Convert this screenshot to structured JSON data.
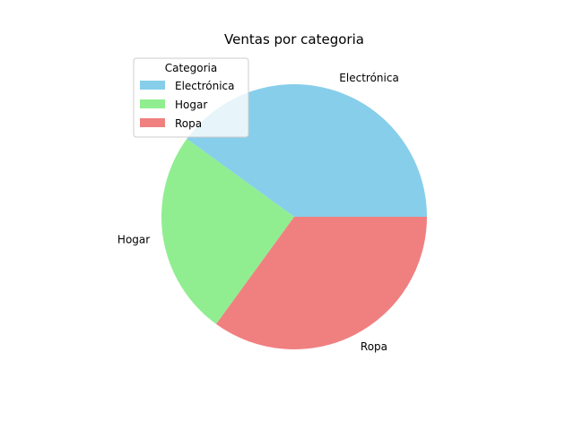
{
  "chart_data": {
    "type": "pie",
    "title": "Ventas por categoria",
    "categories": [
      "Electrónica",
      "Hogar",
      "Ropa"
    ],
    "values": [
      40,
      25,
      35
    ],
    "colors": [
      "#87ceeb",
      "#90ee90",
      "#f08080"
    ],
    "legend": {
      "title": "Categoria",
      "placement": "top-left",
      "entries": [
        "Electrónica",
        "Hogar",
        "Ropa"
      ]
    },
    "start_angle_deg": 0,
    "direction": "counterclockwise"
  }
}
